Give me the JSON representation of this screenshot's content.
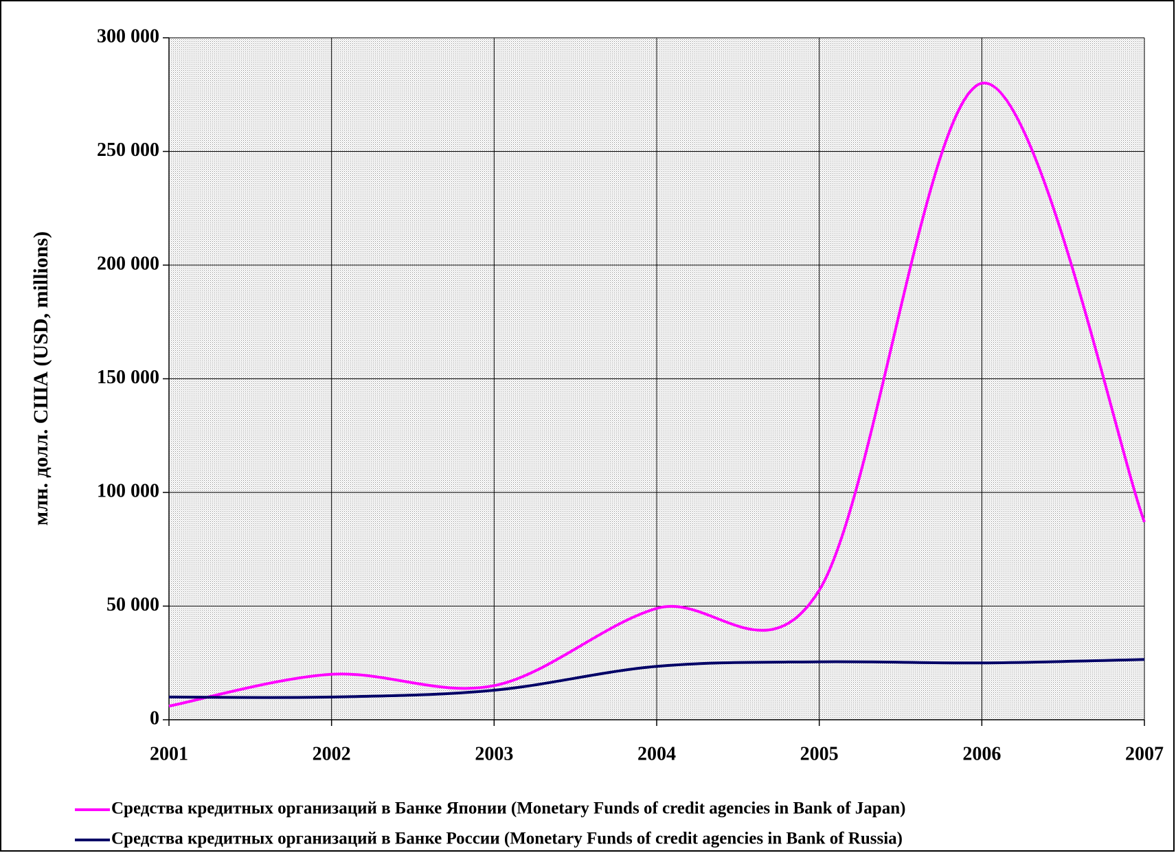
{
  "chart_data": {
    "type": "line",
    "y_label": "млн. долл. США (USD, millions)",
    "x": [
      2001,
      2002,
      2003,
      2004,
      2005,
      2006,
      2007
    ],
    "xlim": [
      2001,
      2007
    ],
    "xticks": [
      2001,
      2002,
      2003,
      2004,
      2005,
      2006,
      2007
    ],
    "ylim": [
      0,
      300000
    ],
    "yticks": [
      0,
      {
        "value": 50000,
        "label": "50 000"
      },
      {
        "value": 100000,
        "label": "100 000"
      },
      {
        "value": 150000,
        "label": "150 000"
      },
      {
        "value": 200000,
        "label": "200 000"
      },
      {
        "value": 250000,
        "label": "250 000"
      },
      {
        "value": 300000,
        "label": "300 000"
      }
    ],
    "grid": true,
    "legend": "bottom",
    "series": [
      {
        "name": "Средства кредитных организаций в Банке Японии (Monetary Funds of credit agencies in Bank of Japan)",
        "color": "#ff00ff",
        "values": [
          6000,
          20000,
          15000,
          49000,
          57000,
          280000,
          87000
        ]
      },
      {
        "name": "Средства кредитных организаций в Банке России (Monetary Funds of credit agencies in Bank of Russia)",
        "color": "#000066",
        "values": [
          10000,
          10000,
          13000,
          23500,
          25500,
          25000,
          26500
        ]
      }
    ]
  }
}
